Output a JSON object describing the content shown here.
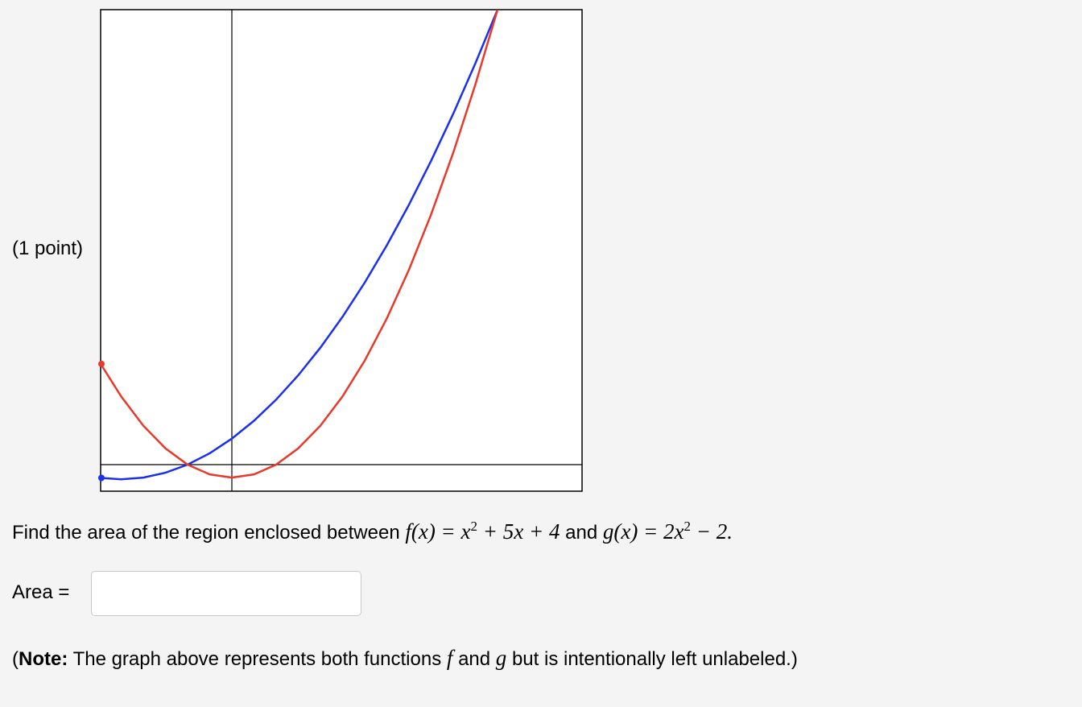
{
  "problem": {
    "points": "(1 point)",
    "prompt": "Find the area of the region enclosed between",
    "f_math": [
      "f(x) = x",
      "2",
      " + 5x + 4"
    ],
    "and": "and",
    "g_math": [
      "g(x) = 2x",
      "2",
      " − 2."
    ],
    "answer_label": "Area =",
    "note_open": "(",
    "note_bold": "Note:",
    "note_text_1": "The graph above represents both functions",
    "note_f": "f",
    "note_and": "and",
    "note_g": "g",
    "note_text_2": "but is intentionally left unlabeled.)"
  }
}
